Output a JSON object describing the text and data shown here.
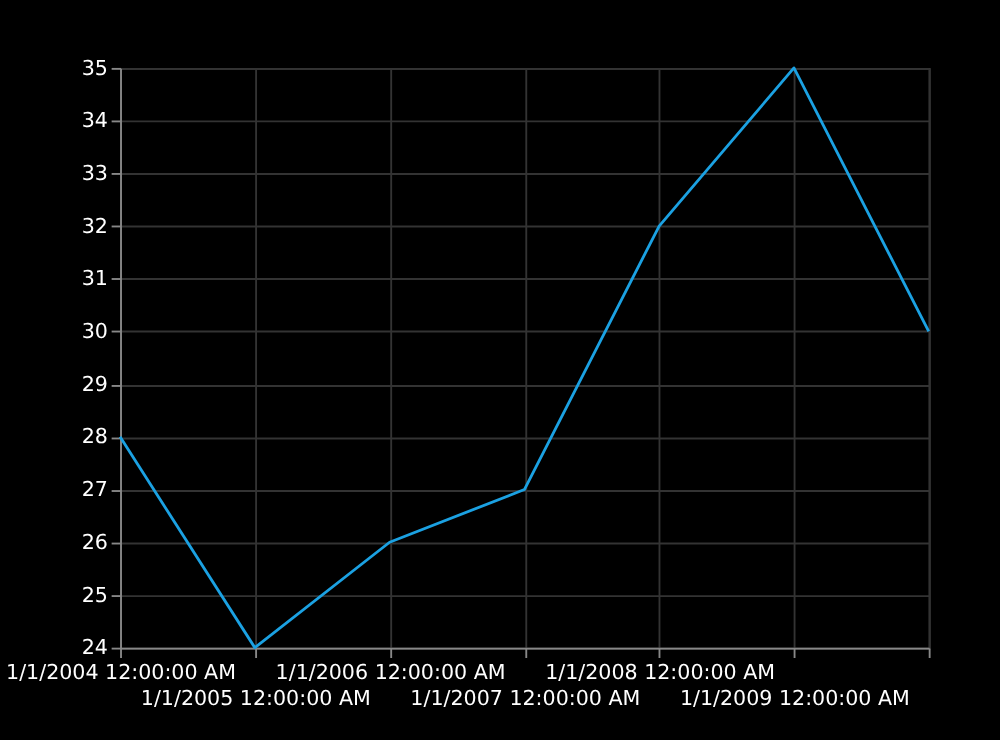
{
  "chart_data": {
    "type": "line",
    "categories": [
      "1/1/2004 12:00:00 AM",
      "1/1/2005 12:00:00 AM",
      "1/1/2006 12:00:00 AM",
      "1/1/2007 12:00:00 AM",
      "1/1/2008 12:00:00 AM",
      "1/1/2009 12:00:00 AM",
      null
    ],
    "series": [
      {
        "color": "#1ba1e2",
        "values": [
          28,
          24,
          26,
          27,
          32,
          35,
          30
        ]
      }
    ],
    "ylim": [
      24,
      35
    ],
    "yticks": [
      24,
      25,
      26,
      27,
      28,
      29,
      30,
      31,
      32,
      33,
      34,
      35
    ],
    "grid": true,
    "marker": "none",
    "line_style": "solid"
  }
}
